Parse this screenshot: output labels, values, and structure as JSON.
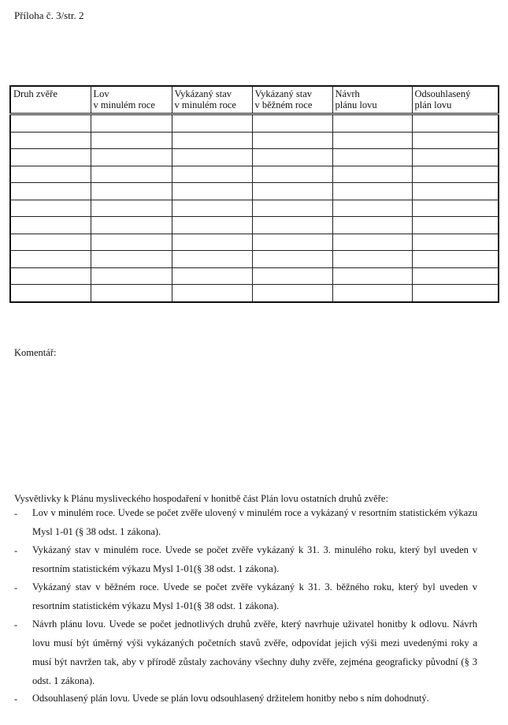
{
  "header": {
    "label": "Příloha č. 3/str. 2"
  },
  "table": {
    "columns": [
      "Druh zvěře",
      "Lov\nv minulém roce",
      "Vykázaný stav\nv minulém roce",
      "Vykázaný stav\nv běžném roce",
      "Návrh\nplánu lovu",
      "Odsouhlasený\nplán lovu"
    ],
    "empty_rows": 11
  },
  "comment_label": "Komentář:",
  "explanations": {
    "title": "Vysvětlivky k Plánu mysliveckého hospodaření v honitbě část Plán lovu ostatních druhů zvěře:",
    "items": [
      "Lov v minulém roce. Uvede se počet zvěře ulovený v minulém roce a vykázaný v resortním statistickém výkazu Mysl 1-01 (§ 38 odst. 1 zákona).",
      "Vykázaný stav v minulém roce. Uvede se počet zvěře vykázaný k 31. 3. minulého roku, který byl uveden v resortním statistickém výkazu Mysl 1-01(§ 38 odst. 1 zákona).",
      "Vykázaný stav v běžném roce. Uvede se počet zvěře vykázaný k 31. 3. běžného roku, který byl uveden v resortním statistickém výkazu Mysl 1-01(§ 38 odst. 1 zákona).",
      "Návrh plánu lovu. Uvede se počet jednotlivých druhů  zvěře, který navrhuje uživatel honitby k odlovu. Návrh lovu musí být úměrný výši vykázaných početních stavů zvěře, odpovídat jejich výši mezi uvedenými roky a musí být navržen tak, aby v přírodě zůstaly zachovány všechny duhy zvěře, zejména geograficky původní (§ 3 odst. 1 zákona).",
      "Odsouhlasený plán lovu. Uvede se plán lovu odsouhlasený držitelem honitby nebo s ním dohodnutý."
    ],
    "bullet": "-"
  }
}
